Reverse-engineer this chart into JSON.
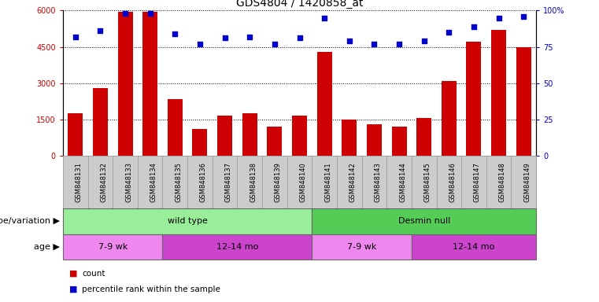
{
  "title": "GDS4804 / 1420858_at",
  "samples": [
    "GSM848131",
    "GSM848132",
    "GSM848133",
    "GSM848134",
    "GSM848135",
    "GSM848136",
    "GSM848137",
    "GSM848138",
    "GSM848139",
    "GSM848140",
    "GSM848141",
    "GSM848142",
    "GSM848143",
    "GSM848144",
    "GSM848145",
    "GSM848146",
    "GSM848147",
    "GSM848148",
    "GSM848149"
  ],
  "counts": [
    1750,
    2800,
    5950,
    5950,
    2350,
    1100,
    1650,
    1750,
    1200,
    1650,
    4300,
    1500,
    1300,
    1200,
    1550,
    3100,
    4700,
    5200,
    4500
  ],
  "percentiles": [
    82,
    86,
    98,
    98,
    84,
    77,
    81,
    82,
    77,
    81,
    95,
    79,
    77,
    77,
    79,
    85,
    89,
    95,
    96
  ],
  "bar_color": "#cc0000",
  "dot_color": "#0000cc",
  "ylim_left": [
    0,
    6000
  ],
  "ylim_right": [
    0,
    100
  ],
  "yticks_left": [
    0,
    1500,
    3000,
    4500,
    6000
  ],
  "ytick_labels_left": [
    "0",
    "1500",
    "3000",
    "4500",
    "6000"
  ],
  "yticks_right": [
    0,
    25,
    50,
    75,
    100
  ],
  "ytick_labels_right": [
    "0",
    "25",
    "50",
    "75",
    "100%"
  ],
  "groups": [
    {
      "label": "wild type",
      "start": 0,
      "end": 10,
      "color": "#99ee99"
    },
    {
      "label": "Desmin null",
      "start": 10,
      "end": 19,
      "color": "#55cc55"
    }
  ],
  "age_groups": [
    {
      "label": "7-9 wk",
      "start": 0,
      "end": 4,
      "color": "#ee88ee"
    },
    {
      "label": "12-14 mo",
      "start": 4,
      "end": 10,
      "color": "#cc44cc"
    },
    {
      "label": "7-9 wk",
      "start": 10,
      "end": 14,
      "color": "#ee88ee"
    },
    {
      "label": "12-14 mo",
      "start": 14,
      "end": 19,
      "color": "#cc44cc"
    }
  ],
  "genotype_label": "genotype/variation",
  "age_label": "age",
  "legend_count_label": "count",
  "legend_pct_label": "percentile rank within the sample",
  "background_color": "#ffffff",
  "title_fontsize": 10,
  "axis_fontsize": 7,
  "tick_label_fontsize": 6,
  "row_label_fontsize": 8,
  "row_content_fontsize": 8
}
